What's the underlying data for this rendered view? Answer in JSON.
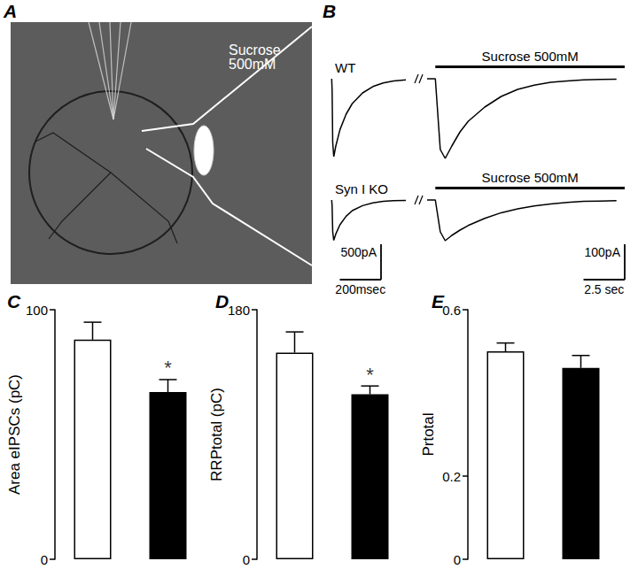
{
  "panel_labels": [
    "A",
    "B",
    "C",
    "D",
    "E"
  ],
  "image": {
    "label": "Sucrose 500mM"
  },
  "traces": {
    "application_label": "Sucrose 500mM",
    "evoked": {
      "xlim": [
        -10,
        390
      ],
      "ylim": [
        -1200,
        50
      ]
    },
    "sucrose": {
      "xlim": [
        -0.5,
        11.5
      ],
      "ylim": [
        -240,
        10
      ]
    },
    "rows": [
      {
        "label": "WT",
        "evoked": {
          "x": [
            0,
            2,
            5,
            10,
            20,
            40,
            70,
            100,
            150,
            200,
            250,
            300,
            360
          ],
          "values": [
            0,
            -150,
            -900,
            -1100,
            -950,
            -720,
            -500,
            -350,
            -200,
            -110,
            -60,
            -30,
            -15
          ]
        },
        "sucrose": {
          "x": [
            -0.5,
            0,
            0.3,
            0.6,
            1,
            1.5,
            2,
            3,
            4,
            5,
            6,
            7,
            8,
            9,
            10,
            11
          ],
          "values": [
            0,
            0,
            -200,
            -225,
            -190,
            -150,
            -120,
            -80,
            -50,
            -30,
            -18,
            -10,
            -6,
            -3,
            -2,
            -1
          ]
        }
      },
      {
        "label": "Syn I KO",
        "evoked": {
          "x": [
            0,
            2,
            5,
            10,
            20,
            40,
            70,
            100,
            150,
            200,
            250,
            300,
            360
          ],
          "values": [
            0,
            -80,
            -450,
            -570,
            -480,
            -350,
            -230,
            -150,
            -80,
            -40,
            -20,
            -10,
            -5
          ]
        },
        "sucrose": {
          "x": [
            -0.5,
            0,
            0.3,
            0.6,
            1,
            1.5,
            2,
            3,
            4,
            5,
            6,
            7,
            8,
            9,
            10,
            11
          ],
          "values": [
            0,
            0,
            -90,
            -115,
            -100,
            -85,
            -72,
            -52,
            -36,
            -25,
            -17,
            -11,
            -7,
            -4,
            -3,
            -2
          ]
        }
      }
    ],
    "scale_bars": {
      "evoked": [
        {
          "axis": "y",
          "value": 500,
          "label": "500pA"
        },
        {
          "axis": "x",
          "value": 200,
          "label": "200msec"
        }
      ],
      "sucrose": [
        {
          "axis": "y",
          "value": 100,
          "label": "100pA"
        },
        {
          "axis": "x",
          "value": 2.5,
          "label": "2.5 sec"
        }
      ]
    }
  },
  "chart_data": [
    {
      "type": "bar",
      "y_label": "Area eIPSCs (pC)",
      "categories": [
        null,
        null
      ],
      "values": [
        88,
        67
      ],
      "errors": [
        7,
        5
      ],
      "colors": [
        "#ffffff",
        "#000000"
      ],
      "ylim": [
        0,
        100
      ],
      "yticks": [
        0,
        100
      ],
      "grid": false,
      "tick_labels": "y",
      "annotations": [
        {
          "text": "*",
          "index": 1
        }
      ]
    },
    {
      "type": "bar",
      "y_label": "RRPtotal (pC)",
      "categories": [
        null,
        null
      ],
      "values": [
        149,
        119
      ],
      "errors": [
        15,
        6
      ],
      "colors": [
        "#ffffff",
        "#000000"
      ],
      "ylim": [
        0,
        180
      ],
      "yticks": [
        0,
        180
      ],
      "grid": false,
      "tick_labels": "y",
      "annotations": [
        {
          "text": "*",
          "index": 1
        }
      ]
    },
    {
      "type": "bar",
      "y_label": "Prtotal",
      "categories": [
        null,
        null
      ],
      "values": [
        0.5,
        0.46
      ],
      "errors": [
        0.02,
        0.03
      ],
      "colors": [
        "#ffffff",
        "#000000"
      ],
      "ylim": [
        0,
        0.6
      ],
      "yticks": [
        0,
        0.2,
        0.6
      ],
      "grid": false,
      "tick_labels": "y"
    }
  ]
}
